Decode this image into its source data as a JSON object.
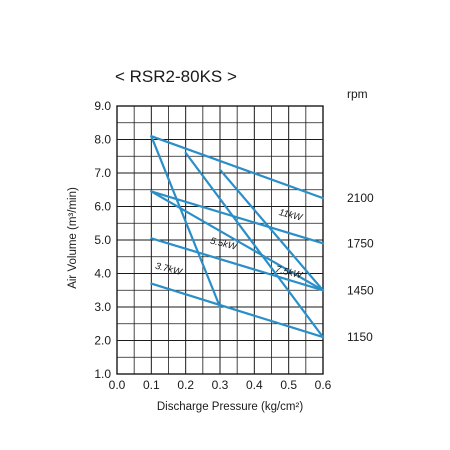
{
  "chart_data": {
    "type": "line",
    "title": "< RSR2-80KS >",
    "xlabel": "Discharge Pressure (kg/cm²)",
    "ylabel": "Air Volume (m³/min)",
    "xlim": [
      0.0,
      0.6
    ],
    "ylim": [
      1.0,
      9.0
    ],
    "x_ticks": [
      "0.0",
      "0.1",
      "0.2",
      "0.3",
      "0.4",
      "0.5",
      "0.6"
    ],
    "y_ticks": [
      "1.0",
      "2.0",
      "3.0",
      "4.0",
      "5.0",
      "6.0",
      "7.0",
      "8.0",
      "9.0"
    ],
    "grid": true,
    "line_color": "#2a8fc9",
    "grid_color": "#1a1a1a",
    "rpm_unit": "rpm",
    "rpm_curves": [
      {
        "label": "2100",
        "points": [
          [
            0.1,
            8.1
          ],
          [
            0.6,
            6.25
          ]
        ]
      },
      {
        "label": "1750",
        "points": [
          [
            0.1,
            6.45
          ],
          [
            0.6,
            4.9
          ]
        ]
      },
      {
        "label": "1450",
        "points": [
          [
            0.1,
            5.05
          ],
          [
            0.6,
            3.5
          ]
        ]
      },
      {
        "label": "1150",
        "points": [
          [
            0.1,
            3.7
          ],
          [
            0.6,
            2.1
          ]
        ]
      }
    ],
    "power_curves": [
      {
        "label": "3.7kW",
        "points": [
          [
            0.1,
            8.1
          ],
          [
            0.3,
            3.0
          ]
        ]
      },
      {
        "label": "5.5kW",
        "points": [
          [
            0.2,
            7.6
          ],
          [
            0.6,
            2.1
          ]
        ]
      },
      {
        "label": "7.5kW",
        "points": [
          [
            0.3,
            7.1
          ],
          [
            0.6,
            3.5
          ]
        ]
      },
      {
        "label": "11kW",
        "points": [
          [
            0.1,
            6.45
          ],
          [
            0.6,
            3.5
          ]
        ]
      }
    ],
    "power_label_positions": [
      {
        "label": "3.7kW",
        "x": 0.11,
        "y": 4.15
      },
      {
        "label": "5.5kW",
        "x": 0.27,
        "y": 4.9
      },
      {
        "label": "7.5kW",
        "x": 0.46,
        "y": 4.05
      },
      {
        "label": "11kW",
        "x": 0.47,
        "y": 5.75
      }
    ]
  }
}
